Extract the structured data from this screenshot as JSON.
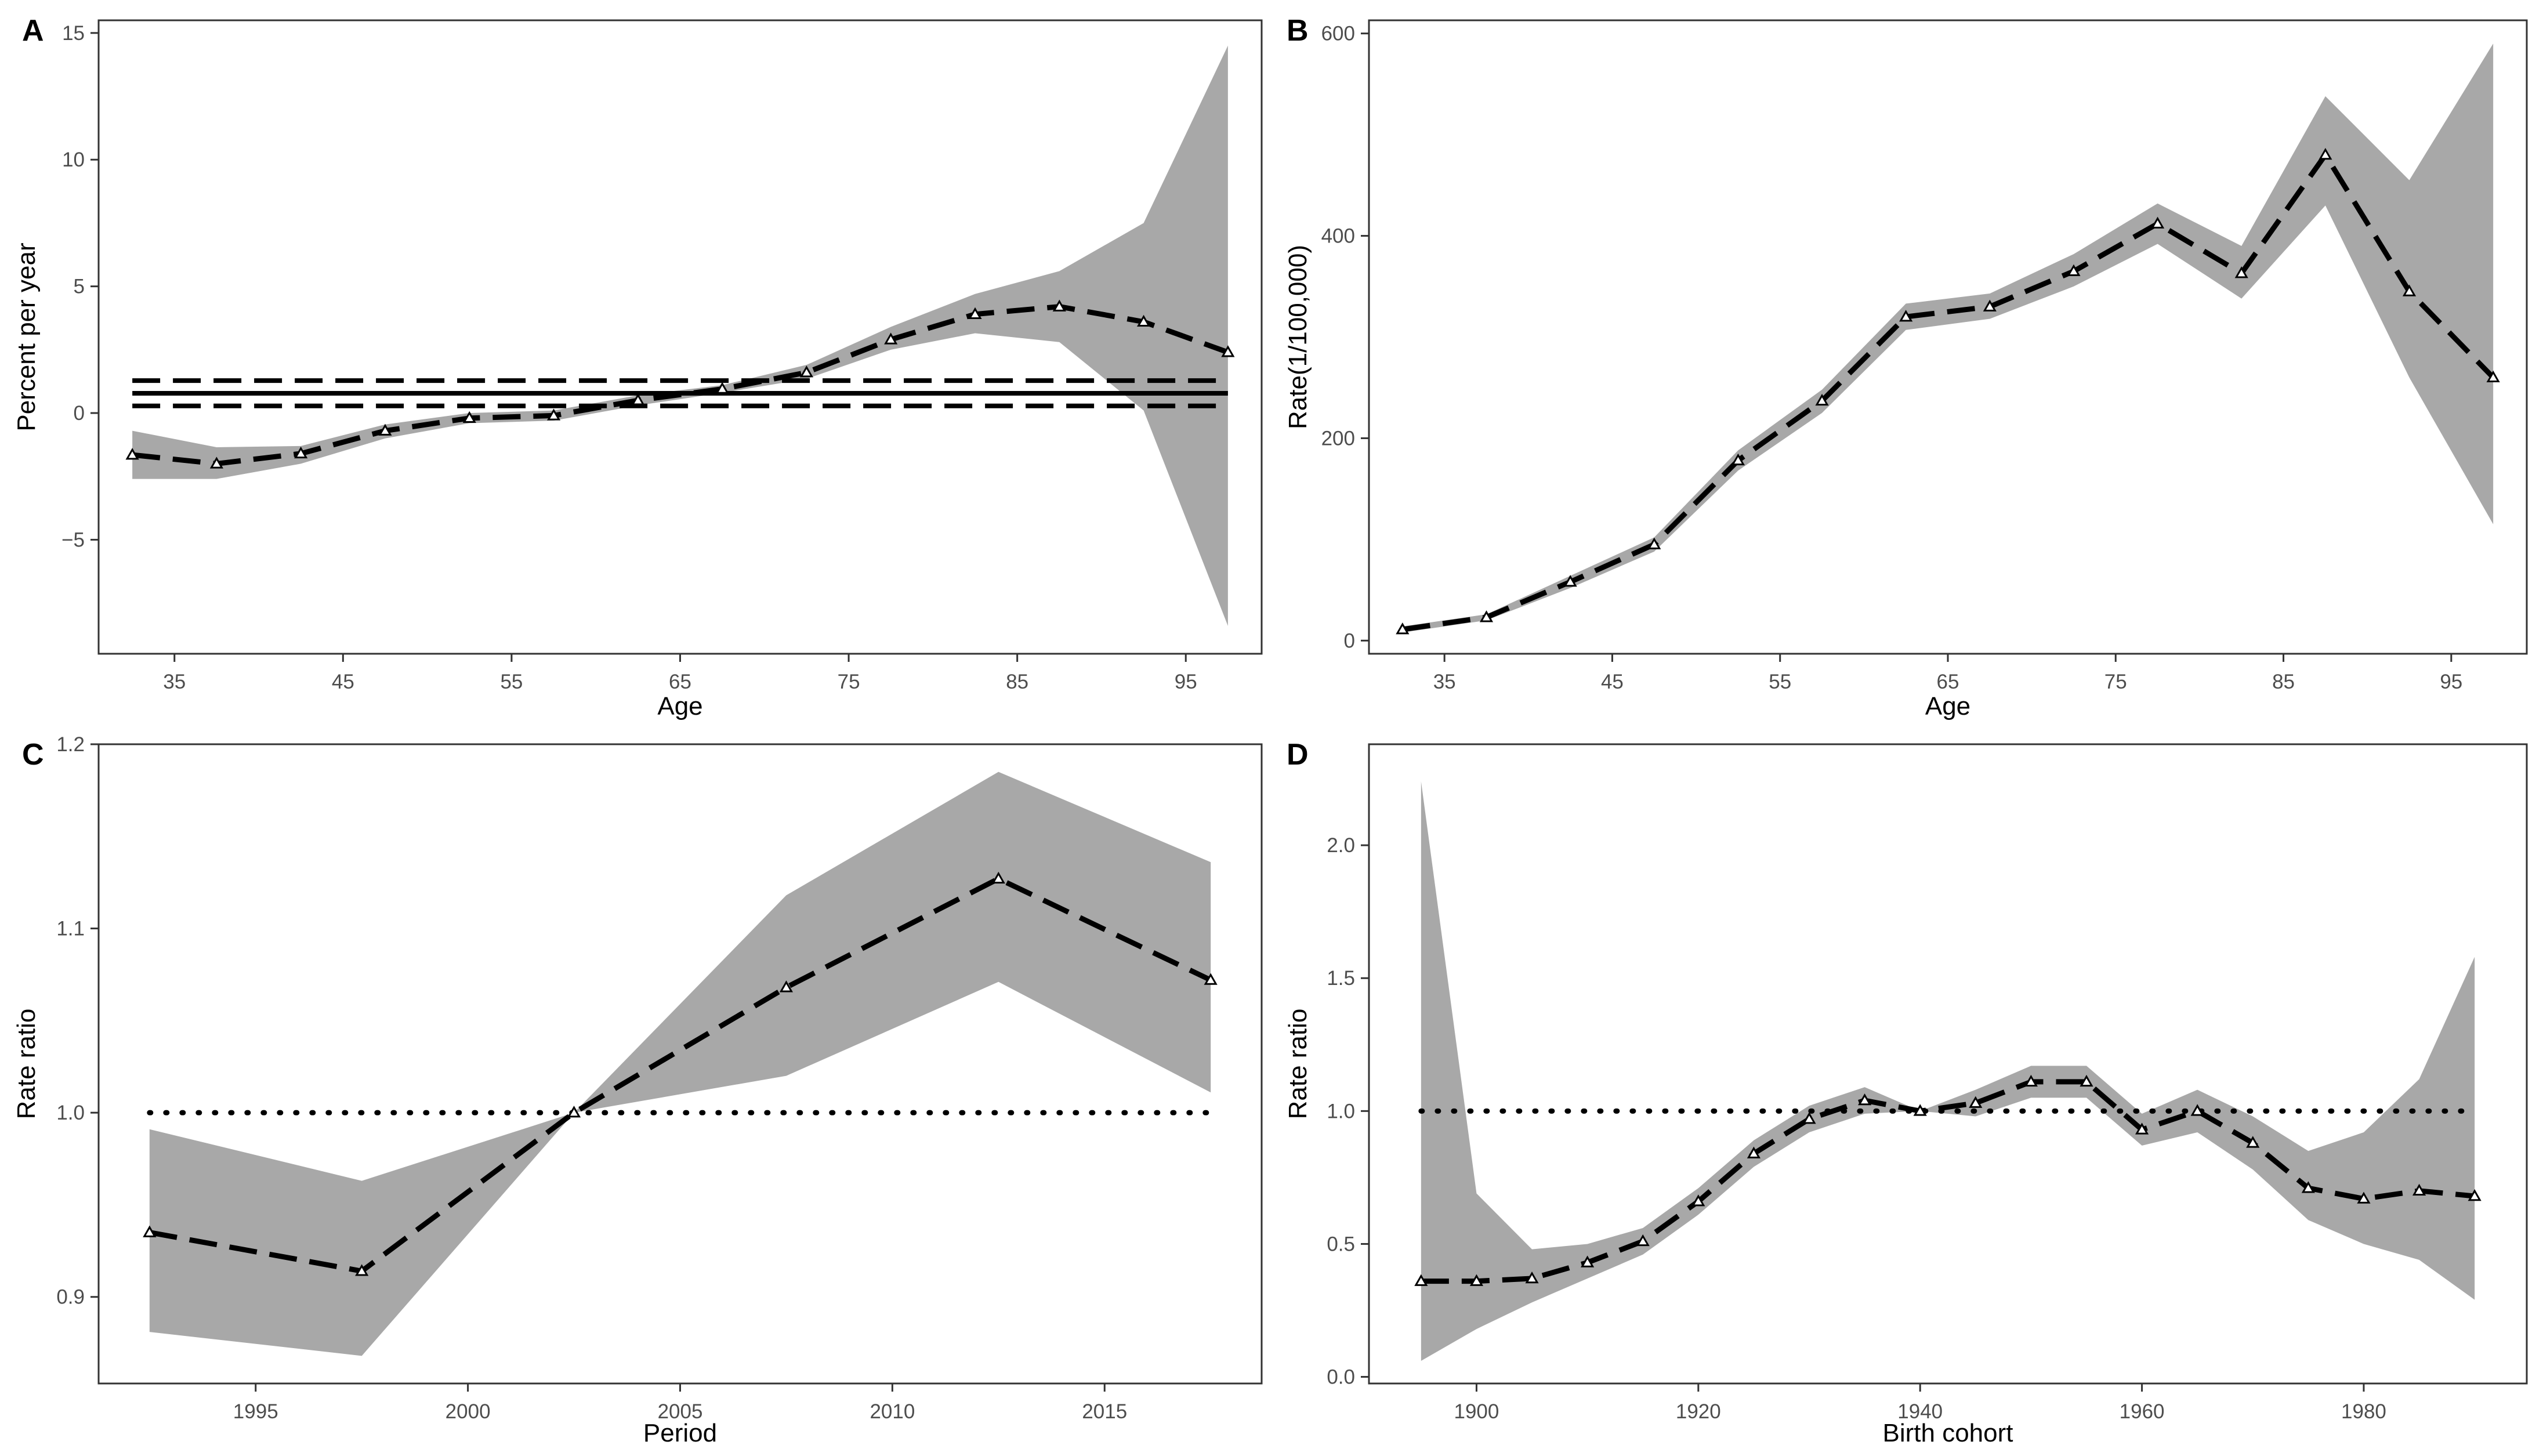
{
  "figure": {
    "background": "#ffffff",
    "band_color": "#a8a8a8",
    "line_color": "#000000"
  },
  "chart_data": [
    {
      "tag": "A",
      "type": "line",
      "xlabel": "Age",
      "ylabel": "Percent per year",
      "xlim": [
        30.5,
        99.5
      ],
      "ylim": [
        -9.5,
        15.5
      ],
      "xticks": [
        35,
        45,
        55,
        65,
        75,
        85,
        95
      ],
      "yticks": [
        -5,
        0,
        5,
        10,
        15
      ],
      "ytick_labels": [
        "−5",
        "0",
        "5",
        "10",
        "15"
      ],
      "x": [
        32.5,
        37.5,
        42.5,
        47.5,
        52.5,
        57.5,
        62.5,
        67.5,
        72.5,
        77.5,
        82.5,
        87.5,
        92.5,
        97.5
      ],
      "y": [
        -1.65,
        -2.0,
        -1.6,
        -0.7,
        -0.2,
        -0.1,
        0.5,
        0.95,
        1.6,
        2.9,
        3.9,
        4.2,
        3.6,
        2.4
      ],
      "lower": [
        -2.6,
        -2.6,
        -2.0,
        -1.0,
        -0.4,
        -0.3,
        0.3,
        0.8,
        1.35,
        2.5,
        3.15,
        2.8,
        0.1,
        -8.4
      ],
      "upper": [
        -0.7,
        -1.35,
        -1.3,
        -0.45,
        0.0,
        0.1,
        0.7,
        1.1,
        1.9,
        3.4,
        4.7,
        5.6,
        7.5,
        14.5
      ],
      "reference_lines": [
        {
          "style": "solid",
          "y": 0.78
        },
        {
          "style": "dashed",
          "y": 1.28
        },
        {
          "style": "dashed",
          "y": 0.28
        }
      ]
    },
    {
      "tag": "B",
      "type": "line",
      "xlabel": "Age",
      "ylabel": "Rate(1/100,000)",
      "xlim": [
        30.5,
        99.5
      ],
      "ylim": [
        -13,
        613
      ],
      "xticks": [
        35,
        45,
        55,
        65,
        75,
        85,
        95
      ],
      "yticks": [
        0,
        200,
        400,
        600
      ],
      "ytick_labels": [
        "0",
        "200",
        "400",
        "600"
      ],
      "x": [
        32.5,
        37.5,
        42.5,
        47.5,
        52.5,
        57.5,
        62.5,
        67.5,
        72.5,
        77.5,
        82.5,
        87.5,
        92.5,
        97.5
      ],
      "y": [
        11,
        23,
        58,
        95,
        178,
        237,
        320,
        330,
        365,
        412,
        363,
        480,
        345,
        260
      ],
      "lower": [
        8,
        20,
        52,
        88,
        168,
        225,
        307,
        318,
        350,
        392,
        338,
        430,
        260,
        115
      ],
      "upper": [
        14,
        26,
        64,
        102,
        188,
        248,
        333,
        343,
        382,
        432,
        390,
        538,
        455,
        590
      ],
      "reference_lines": []
    },
    {
      "tag": "C",
      "type": "line",
      "xlabel": "Period",
      "ylabel": "Rate ratio",
      "xlim": [
        1991.3,
        2018.7
      ],
      "ylim": [
        0.853,
        1.2
      ],
      "xticks": [
        1995,
        2000,
        2005,
        2010,
        2015
      ],
      "yticks": [
        0.9,
        1.0,
        1.1,
        1.2
      ],
      "ytick_labels": [
        "0.9",
        "1.0",
        "1.1",
        "1.2"
      ],
      "x": [
        1992.5,
        1997.5,
        2002.5,
        2007.5,
        2012.5,
        2017.5
      ],
      "y": [
        0.935,
        0.914,
        1.0,
        1.068,
        1.127,
        1.072
      ],
      "lower": [
        0.881,
        0.868,
        1.0,
        1.02,
        1.071,
        1.011
      ],
      "upper": [
        0.991,
        0.963,
        1.0,
        1.118,
        1.185,
        1.136
      ],
      "reference_lines": [
        {
          "style": "dotted",
          "y": 1.0
        }
      ]
    },
    {
      "tag": "D",
      "type": "line",
      "xlabel": "Birth cohort",
      "ylabel": "Rate ratio",
      "xlim": [
        1890.3,
        1994.7
      ],
      "ylim": [
        -0.025,
        2.38
      ],
      "xticks": [
        1900,
        1920,
        1940,
        1960,
        1980
      ],
      "yticks": [
        0.0,
        0.5,
        1.0,
        1.5,
        2.0
      ],
      "ytick_labels": [
        "0.0",
        "0.5",
        "1.0",
        "1.5",
        "2.0"
      ],
      "x": [
        1895,
        1900,
        1905,
        1910,
        1915,
        1920,
        1925,
        1930,
        1935,
        1940,
        1945,
        1950,
        1955,
        1960,
        1965,
        1970,
        1975,
        1980,
        1985,
        1990
      ],
      "y": [
        0.36,
        0.36,
        0.37,
        0.43,
        0.51,
        0.66,
        0.84,
        0.97,
        1.04,
        1.0,
        1.03,
        1.11,
        1.11,
        0.93,
        1.0,
        0.88,
        0.71,
        0.67,
        0.7,
        0.68
      ],
      "lower": [
        0.06,
        0.18,
        0.28,
        0.37,
        0.46,
        0.61,
        0.79,
        0.92,
        0.99,
        1.0,
        0.98,
        1.05,
        1.05,
        0.87,
        0.92,
        0.78,
        0.59,
        0.5,
        0.44,
        0.29
      ],
      "upper": [
        2.24,
        0.69,
        0.48,
        0.5,
        0.56,
        0.71,
        0.89,
        1.02,
        1.09,
        1.0,
        1.08,
        1.17,
        1.17,
        0.99,
        1.08,
        0.98,
        0.85,
        0.92,
        1.12,
        1.58
      ],
      "reference_lines": [
        {
          "style": "dotted",
          "y": 1.0
        }
      ]
    }
  ]
}
